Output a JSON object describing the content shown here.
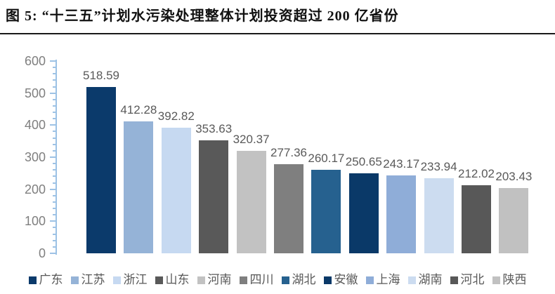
{
  "header": {
    "title": "图 5: “十三五”计划水污染处理整体计划投资超过 200 亿省份"
  },
  "chart_data": {
    "type": "bar",
    "title": "",
    "xlabel": "",
    "ylabel": "",
    "categories": [
      "广东",
      "江苏",
      "浙江",
      "山东",
      "河南",
      "四川",
      "湖北",
      "安徽",
      "上海",
      "湖南",
      "河北",
      "陕西"
    ],
    "values": [
      518.59,
      412.28,
      392.82,
      353.63,
      320.37,
      277.36,
      260.17,
      250.65,
      243.17,
      233.94,
      212.02,
      203.43
    ],
    "value_labels": [
      "518.59",
      "412.28",
      "392.82",
      "353.63",
      "320.37",
      "277.36",
      "260.17",
      "250.65",
      "243.17",
      "233.94",
      "212.02",
      "203.43"
    ],
    "bar_colors": [
      "#0b3a6b",
      "#95b3d7",
      "#c6d9f1",
      "#595959",
      "#c2c2c2",
      "#7f7f7f",
      "#26618f",
      "#0a3968",
      "#8fadd8",
      "#ccdcf0",
      "#585858",
      "#c1c1c1"
    ],
    "ylim": [
      0,
      600
    ],
    "ytick_interval": 100,
    "yminor_tick_interval": 20,
    "ytick_labels": [
      "0",
      "100",
      "200",
      "300",
      "400",
      "500",
      "600"
    ],
    "grid": false,
    "x_axis_line": false,
    "legend_position": "bottom",
    "colors": {
      "axis": "#9dc2e5",
      "tick_label": "#7f7f7f",
      "value_label": "#595959",
      "legend_text": "#595959",
      "title_text": "#111111",
      "title_rule": "#1a1a1a"
    }
  }
}
